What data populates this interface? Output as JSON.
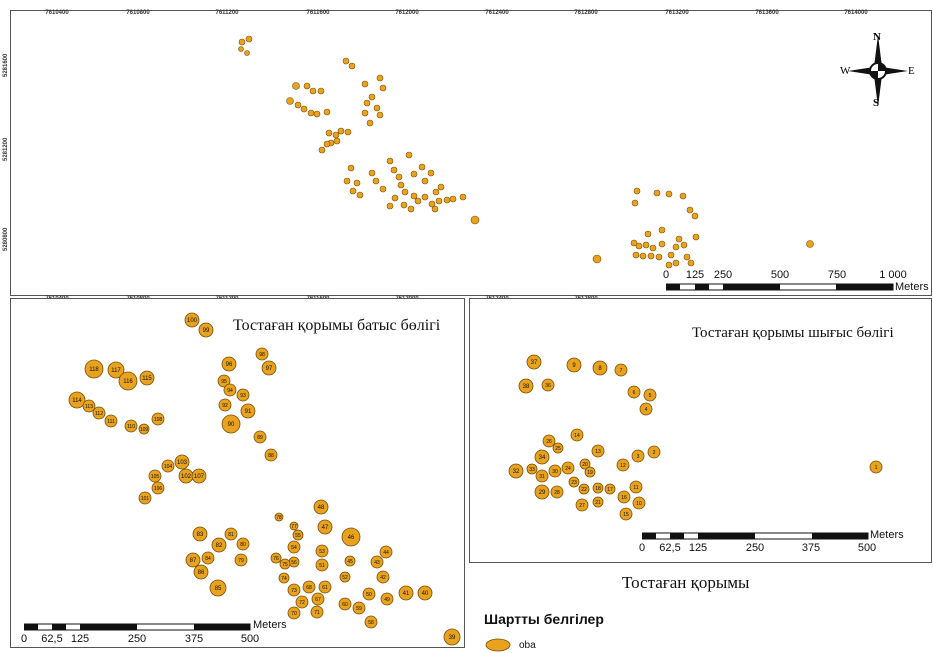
{
  "overview": {
    "x_ticks": [
      "7610400",
      "7610800",
      "7611200",
      "7611600",
      "7612000",
      "7612400",
      "7612800",
      "7613200",
      "7613600",
      "7614000"
    ],
    "y_ticks": [
      "5281600",
      "5281200",
      "5280800"
    ],
    "scalebar": {
      "labels": [
        "0",
        "125",
        "250",
        "500",
        "750",
        "1 000"
      ],
      "unit": "Meters"
    },
    "compass": {
      "n": "N",
      "s": "S",
      "e": "E",
      "w": "W"
    }
  },
  "west_map": {
    "title": "Тостаған қорымы батыс бөлігі",
    "scalebar": {
      "labels": [
        "0",
        "62,5",
        "125",
        "250",
        "375",
        "500"
      ],
      "unit": "Meters"
    },
    "points": [
      {
        "id": "100"
      },
      {
        "id": "99"
      },
      {
        "id": "98"
      },
      {
        "id": "97"
      },
      {
        "id": "96"
      },
      {
        "id": "95"
      },
      {
        "id": "94"
      },
      {
        "id": "93"
      },
      {
        "id": "92"
      },
      {
        "id": "91"
      },
      {
        "id": "90"
      },
      {
        "id": "89"
      },
      {
        "id": "88"
      },
      {
        "id": "118"
      },
      {
        "id": "117"
      },
      {
        "id": "116"
      },
      {
        "id": "115"
      },
      {
        "id": "114"
      },
      {
        "id": "113"
      },
      {
        "id": "112"
      },
      {
        "id": "111"
      },
      {
        "id": "110"
      },
      {
        "id": "109"
      },
      {
        "id": "108"
      },
      {
        "id": "104"
      },
      {
        "id": "103"
      },
      {
        "id": "105"
      },
      {
        "id": "102"
      },
      {
        "id": "107"
      },
      {
        "id": "106"
      },
      {
        "id": "101"
      },
      {
        "id": "83"
      },
      {
        "id": "81"
      },
      {
        "id": "82"
      },
      {
        "id": "80"
      },
      {
        "id": "87"
      },
      {
        "id": "84"
      },
      {
        "id": "86"
      },
      {
        "id": "79"
      },
      {
        "id": "85"
      },
      {
        "id": "48"
      },
      {
        "id": "47"
      },
      {
        "id": "46"
      },
      {
        "id": "78"
      },
      {
        "id": "77"
      },
      {
        "id": "55"
      },
      {
        "id": "54"
      },
      {
        "id": "53"
      },
      {
        "id": "76"
      },
      {
        "id": "56"
      },
      {
        "id": "75"
      },
      {
        "id": "51"
      },
      {
        "id": "44"
      },
      {
        "id": "45"
      },
      {
        "id": "43"
      },
      {
        "id": "42"
      },
      {
        "id": "74"
      },
      {
        "id": "52"
      },
      {
        "id": "41"
      },
      {
        "id": "73"
      },
      {
        "id": "68"
      },
      {
        "id": "61"
      },
      {
        "id": "50"
      },
      {
        "id": "49"
      },
      {
        "id": "40"
      },
      {
        "id": "72"
      },
      {
        "id": "67"
      },
      {
        "id": "60"
      },
      {
        "id": "59"
      },
      {
        "id": "71"
      },
      {
        "id": "70"
      },
      {
        "id": "58"
      },
      {
        "id": "39"
      }
    ]
  },
  "east_map": {
    "title": "Тостаған қорымы шығыс бөлігі",
    "scalebar": {
      "labels": [
        "0",
        "62,5",
        "125",
        "250",
        "375",
        "500"
      ],
      "unit": "Meters"
    },
    "points": [
      {
        "id": "37"
      },
      {
        "id": "9"
      },
      {
        "id": "8"
      },
      {
        "id": "7"
      },
      {
        "id": "38"
      },
      {
        "id": "36"
      },
      {
        "id": "6"
      },
      {
        "id": "5"
      },
      {
        "id": "4"
      },
      {
        "id": "14"
      },
      {
        "id": "26"
      },
      {
        "id": "25"
      },
      {
        "id": "13"
      },
      {
        "id": "3"
      },
      {
        "id": "2"
      },
      {
        "id": "34"
      },
      {
        "id": "20"
      },
      {
        "id": "12"
      },
      {
        "id": "1"
      },
      {
        "id": "32"
      },
      {
        "id": "33"
      },
      {
        "id": "31"
      },
      {
        "id": "30"
      },
      {
        "id": "24"
      },
      {
        "id": "19"
      },
      {
        "id": "23"
      },
      {
        "id": "11"
      },
      {
        "id": "29"
      },
      {
        "id": "28"
      },
      {
        "id": "22"
      },
      {
        "id": "18"
      },
      {
        "id": "17"
      },
      {
        "id": "16"
      },
      {
        "id": "27"
      },
      {
        "id": "21"
      },
      {
        "id": "10"
      },
      {
        "id": "15"
      }
    ]
  },
  "main_title": "Тостаған қорымы",
  "legend": {
    "title": "Шартты белгілер",
    "items": [
      {
        "label": "oba",
        "color": "#E8A21E"
      }
    ]
  },
  "colors": {
    "mound_fill": "#E8A21E",
    "mound_stroke": "#7A4E08"
  }
}
